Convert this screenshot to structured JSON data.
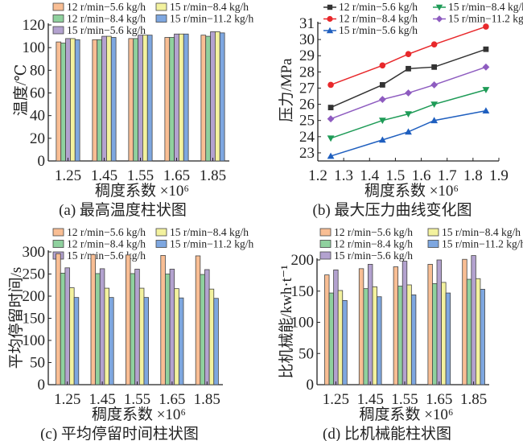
{
  "chart_data": [
    {
      "id": "a",
      "type": "bar",
      "caption": "(a) 最高温度柱状图",
      "xlabel": "稠度系数 ×10⁶",
      "ylabel": "温度/℃",
      "categories": [
        "1.25",
        "1.45",
        "1.55",
        "1.65",
        "1.85"
      ],
      "ylim": [
        0,
        120
      ],
      "yticks": [
        0,
        20,
        40,
        60,
        80,
        100,
        120
      ],
      "legend_position": "top",
      "series": [
        {
          "name": "12 r/min−5.6 kg/h",
          "color": "#f9be94",
          "values": [
            105,
            107,
            108,
            109,
            111
          ]
        },
        {
          "name": "12 r/min−8.4 kg/h",
          "color": "#8fd19e",
          "values": [
            104,
            107,
            108,
            109,
            110
          ]
        },
        {
          "name": "15 r/min−5.6 kg/h",
          "color": "#b3a2cf",
          "values": [
            108,
            110,
            111,
            112,
            114
          ]
        },
        {
          "name": "15 r/min−8.4 kg/h",
          "color": "#f3f29e",
          "values": [
            108,
            110,
            111,
            112,
            114
          ]
        },
        {
          "name": "15 r/min−11.2 kg/h",
          "color": "#7ea7e0",
          "values": [
            107,
            109,
            111,
            112,
            113
          ]
        }
      ]
    },
    {
      "id": "b",
      "type": "line",
      "caption": "(b) 最大压力曲线变化图",
      "xlabel": "稠度系数 ×10⁶",
      "ylabel": "压力/MPa",
      "x": [
        1.25,
        1.45,
        1.55,
        1.65,
        1.85
      ],
      "xlim": [
        1.2,
        1.9
      ],
      "xticks": [
        "1.2",
        "1.3",
        "1.4",
        "1.5",
        "1.6",
        "1.7",
        "1.8",
        "1.9"
      ],
      "ylim": [
        22.5,
        31
      ],
      "yticks": [
        23,
        24,
        25,
        26,
        27,
        28,
        29,
        30,
        31
      ],
      "legend_position": "top",
      "series": [
        {
          "name": "12 r/min−5.6 kg/h",
          "color": "#333333",
          "marker": "square",
          "values": [
            25.8,
            27.2,
            28.2,
            28.3,
            29.4
          ]
        },
        {
          "name": "12 r/min−8.4 kg/h",
          "color": "#e8282b",
          "marker": "circle",
          "values": [
            27.2,
            28.4,
            29.1,
            29.7,
            30.8
          ]
        },
        {
          "name": "15 r/min−5.6 kg/h",
          "color": "#1f5fbf",
          "marker": "triangle-up",
          "values": [
            22.8,
            23.8,
            24.3,
            25.0,
            25.6
          ]
        },
        {
          "name": "15 r/min−8.4 kg/h",
          "color": "#1e9b57",
          "marker": "triangle-down",
          "values": [
            23.9,
            25.0,
            25.4,
            26.0,
            26.9
          ]
        },
        {
          "name": "15 r/min−11.2 kg/h",
          "color": "#8e5cc0",
          "marker": "diamond",
          "values": [
            25.1,
            26.3,
            26.7,
            27.2,
            28.3
          ]
        }
      ]
    },
    {
      "id": "c",
      "type": "bar",
      "caption": "(c) 平均停留时间柱状图",
      "xlabel": "稠度系数 ×10⁶",
      "ylabel": "平均停留时间/s",
      "categories": [
        "1.25",
        "1.45",
        "1.55",
        "1.65",
        "1.85"
      ],
      "ylim": [
        0,
        300
      ],
      "yticks": [
        0,
        50,
        100,
        150,
        200,
        250,
        300
      ],
      "legend_position": "top",
      "series": [
        {
          "name": "12 r/min−5.6 kg/h",
          "color": "#f9be94",
          "values": [
            296,
            294,
            293,
            292,
            291
          ]
        },
        {
          "name": "12 r/min−8.4 kg/h",
          "color": "#8fd19e",
          "values": [
            252,
            251,
            251,
            250,
            249
          ]
        },
        {
          "name": "15 r/min−5.6 kg/h",
          "color": "#b3a2cf",
          "values": [
            264,
            262,
            261,
            261,
            260
          ]
        },
        {
          "name": "15 r/min−8.4 kg/h",
          "color": "#f3f29e",
          "values": [
            219,
            218,
            218,
            217,
            216
          ]
        },
        {
          "name": "15 r/min−11.2 kg/h",
          "color": "#7ea7e0",
          "values": [
            197,
            197,
            197,
            196,
            195
          ]
        }
      ]
    },
    {
      "id": "d",
      "type": "bar",
      "caption": "(d) 比机械能柱状图",
      "xlabel": "稠度系数 ×10⁶",
      "ylabel": "比机械能/kwh·t⁻¹",
      "categories": [
        "1.25",
        "1.45",
        "1.55",
        "1.65",
        "1.85"
      ],
      "ylim": [
        0,
        200
      ],
      "yticks": [
        0,
        50,
        100,
        150,
        200
      ],
      "legend_position": "top",
      "series": [
        {
          "name": "12 r/min−5.6 kg/h",
          "color": "#f9be94",
          "values": [
            176,
            186,
            189,
            193,
            201
          ]
        },
        {
          "name": "12 r/min−8.4 kg/h",
          "color": "#8fd19e",
          "values": [
            147,
            154,
            158,
            162,
            169
          ]
        },
        {
          "name": "15 r/min−5.6 kg/h",
          "color": "#b3a2cf",
          "values": [
            184,
            193,
            198,
            200,
            207
          ]
        },
        {
          "name": "15 r/min−8.4 kg/h",
          "color": "#f3f29e",
          "values": [
            151,
            157,
            160,
            164,
            170
          ]
        },
        {
          "name": "15 r/min−11.2 kg/h",
          "color": "#7ea7e0",
          "values": [
            135,
            141,
            144,
            147,
            153
          ]
        }
      ]
    }
  ]
}
